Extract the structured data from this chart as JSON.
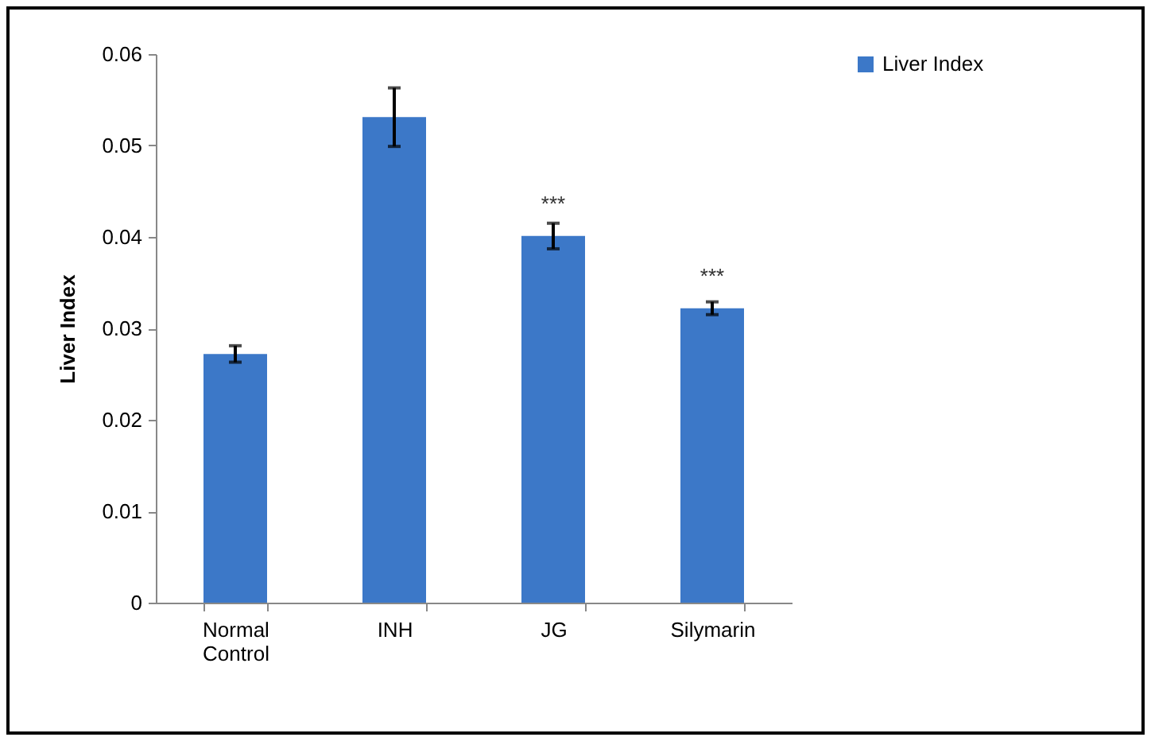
{
  "chart_data": {
    "type": "bar",
    "ylabel": "Liver Index",
    "categories": [
      "Normal Control",
      "INH",
      "JG",
      "Silymarin"
    ],
    "series": [
      {
        "name": "Liver Index",
        "color": "#3c78c8",
        "values": [
          0.0272,
          0.0531,
          0.0401,
          0.0322
        ],
        "errors": [
          0.0009,
          0.0032,
          0.0014,
          0.0007
        ]
      }
    ],
    "ylim": [
      0,
      0.06
    ],
    "yticks": [
      0,
      0.01,
      0.02,
      0.03,
      0.04,
      0.05,
      0.06
    ],
    "grid": false,
    "legend": "right",
    "annotations": [
      {
        "text": "***",
        "x": "JG",
        "y": 0.0401
      },
      {
        "text": "***",
        "x": "Silymarin",
        "y": 0.0322
      }
    ]
  }
}
